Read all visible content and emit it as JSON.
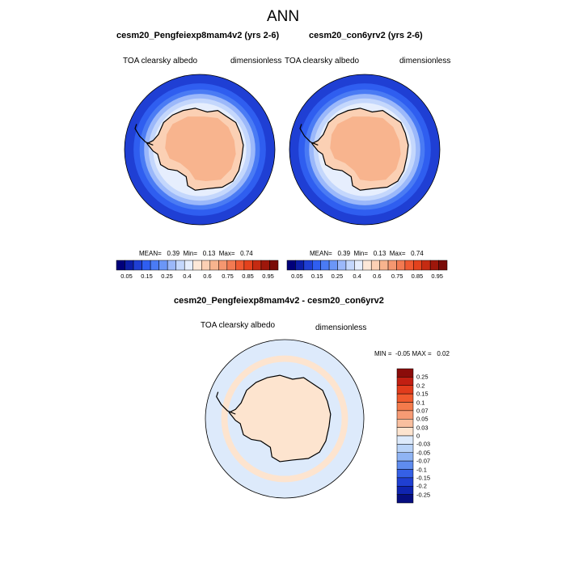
{
  "chart_data": {
    "type": "heatmap",
    "title": "ANN",
    "panels": [
      {
        "title": "cesm20_Pengfeiexp8mam4v2 (yrs 2-6)",
        "variable": "TOA clearsky albedo",
        "units": "dimensionless",
        "stats_text": "MEAN=   0.39  Min=   0.13  Max=   0.74",
        "mean": 0.39,
        "min": 0.13,
        "max": 0.74,
        "projection": "south polar stereographic",
        "colorbar": {
          "orientation": "horizontal",
          "levels": [
            "0.05",
            "0.15",
            "0.25",
            "0.4",
            "0.6",
            "0.75",
            "0.85",
            "0.95"
          ],
          "colors": [
            "#00007a",
            "#0c1ea8",
            "#1f3fd4",
            "#2f5ef0",
            "#4a7bf4",
            "#6b96f7",
            "#9bb8fa",
            "#c4d7fc",
            "#e6eefd",
            "#fde8d8",
            "#fbd0b4",
            "#f8b48e",
            "#f59770",
            "#f27a52",
            "#ef5a32",
            "#e4421d",
            "#c52b12",
            "#9e170b",
            "#7a0c08"
          ]
        }
      },
      {
        "title": "cesm20_con6yrv2 (yrs 2-6)",
        "variable": "TOA clearsky albedo",
        "units": "dimensionless",
        "stats_text": "MEAN=   0.39  Min=   0.13  Max=   0.74",
        "mean": 0.39,
        "min": 0.13,
        "max": 0.74,
        "projection": "south polar stereographic",
        "colorbar": {
          "orientation": "horizontal",
          "levels": [
            "0.05",
            "0.15",
            "0.25",
            "0.4",
            "0.6",
            "0.75",
            "0.85",
            "0.95"
          ],
          "colors": [
            "#00007a",
            "#0c1ea8",
            "#1f3fd4",
            "#2f5ef0",
            "#4a7bf4",
            "#6b96f7",
            "#9bb8fa",
            "#c4d7fc",
            "#e6eefd",
            "#fde8d8",
            "#fbd0b4",
            "#f8b48e",
            "#f59770",
            "#f27a52",
            "#ef5a32",
            "#e4421d",
            "#c52b12",
            "#9e170b",
            "#7a0c08"
          ]
        }
      },
      {
        "title": "cesm20_Pengfeiexp8mam4v2 - cesm20_con6yrv2",
        "variable": "TOA clearsky albedo",
        "units": "dimensionless",
        "stats_text": "MIN =  -0.05 MAX =   0.02",
        "min": -0.05,
        "max": 0.02,
        "projection": "south polar stereographic",
        "colorbar": {
          "orientation": "vertical",
          "levels": [
            "0.25",
            "0.2",
            "0.15",
            "0.1",
            "0.07",
            "0.05",
            "0.03",
            "0",
            "-0.03",
            "-0.05",
            "-0.07",
            "-0.1",
            "-0.15",
            "-0.2",
            "-0.25"
          ],
          "colors": [
            "#8b0c0a",
            "#c21f12",
            "#e23c1c",
            "#f05a2e",
            "#f47b4c",
            "#f79b74",
            "#f9bf9f",
            "#fde4cf",
            "#ddeafb",
            "#b9d3f8",
            "#8fb4f4",
            "#5f8cef",
            "#3560e6",
            "#1f3fd2",
            "#0f24b0",
            "#060e80"
          ]
        }
      }
    ]
  }
}
